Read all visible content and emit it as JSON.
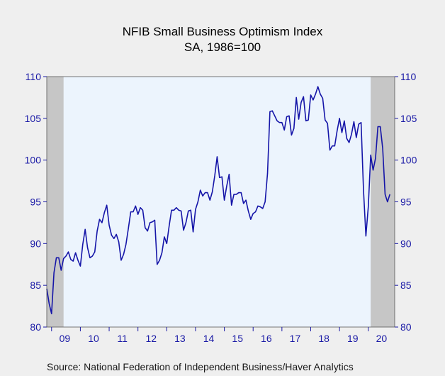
{
  "chart_data": {
    "type": "line",
    "title": "NFIB Small Business Optimism Index",
    "subtitle": "SA, 1986=100",
    "source": "Source:  National Federation of Independent Business/Haver Analytics",
    "xlabel": "",
    "ylabel": "",
    "ylim": [
      80,
      110
    ],
    "yticks": [
      80,
      85,
      90,
      95,
      100,
      105,
      110
    ],
    "x_year_labels": [
      "09",
      "10",
      "11",
      "12",
      "13",
      "14",
      "15",
      "16",
      "17",
      "18",
      "19",
      "20"
    ],
    "x_range": [
      "2008-11",
      "2020-12"
    ],
    "grid": false,
    "recession_shading": [
      {
        "start": "2008-11",
        "end": "2009-06"
      },
      {
        "start": "2020-02",
        "end": "2020-12"
      }
    ],
    "colors": {
      "line": "#1515a8",
      "plot_bg": "#ecf4fd",
      "recession": "#c6c6c6",
      "axis": "#1a1aa6",
      "page_bg": "#efefef"
    },
    "series": [
      {
        "x_start": "2008-11",
        "frequency": "monthly",
        "values": [
          84.6,
          82.8,
          81.6,
          86.5,
          88.3,
          88.3,
          86.8,
          88.2,
          88.5,
          89.0,
          88.1,
          87.9,
          88.9,
          88.0,
          87.3,
          89.9,
          91.7,
          89.5,
          88.3,
          88.5,
          89.0,
          91.5,
          92.9,
          92.5,
          93.7,
          94.6,
          92.2,
          91.0,
          90.6,
          91.1,
          90.2,
          88.0,
          88.7,
          89.9,
          91.8,
          93.8,
          93.8,
          94.5,
          93.5,
          94.3,
          94.0,
          91.9,
          91.5,
          92.5,
          92.6,
          92.8,
          87.5,
          88.0,
          88.9,
          90.8,
          90.0,
          92.1,
          94.0,
          94.0,
          94.3,
          94.0,
          93.9,
          91.6,
          92.5,
          93.9,
          94.0,
          91.4,
          94.1,
          95.0,
          96.4,
          95.7,
          96.1,
          96.1,
          95.2,
          96.2,
          98.1,
          100.4,
          97.9,
          98.0,
          95.2,
          96.9,
          98.3,
          94.6,
          95.9,
          95.9,
          96.1,
          96.1,
          94.8,
          95.2,
          93.9,
          92.9,
          93.6,
          93.8,
          94.5,
          94.4,
          94.2,
          95.0,
          98.4,
          105.8,
          105.9,
          105.3,
          104.7,
          104.5,
          104.5,
          103.6,
          105.2,
          105.3,
          103.0,
          103.8,
          107.5,
          104.9,
          106.9,
          107.6,
          104.7,
          104.8,
          107.8,
          107.2,
          107.9,
          108.8,
          107.9,
          107.4,
          104.8,
          104.4,
          101.2,
          101.7,
          101.7,
          103.5,
          105.0,
          103.3,
          104.7,
          102.6,
          102.1,
          103.1,
          104.6,
          102.7,
          104.3,
          104.5,
          96.4,
          90.9,
          94.4,
          100.6,
          98.8,
          100.2,
          104.0,
          104.0,
          101.4,
          95.9,
          95.0,
          95.9
        ]
      }
    ]
  }
}
